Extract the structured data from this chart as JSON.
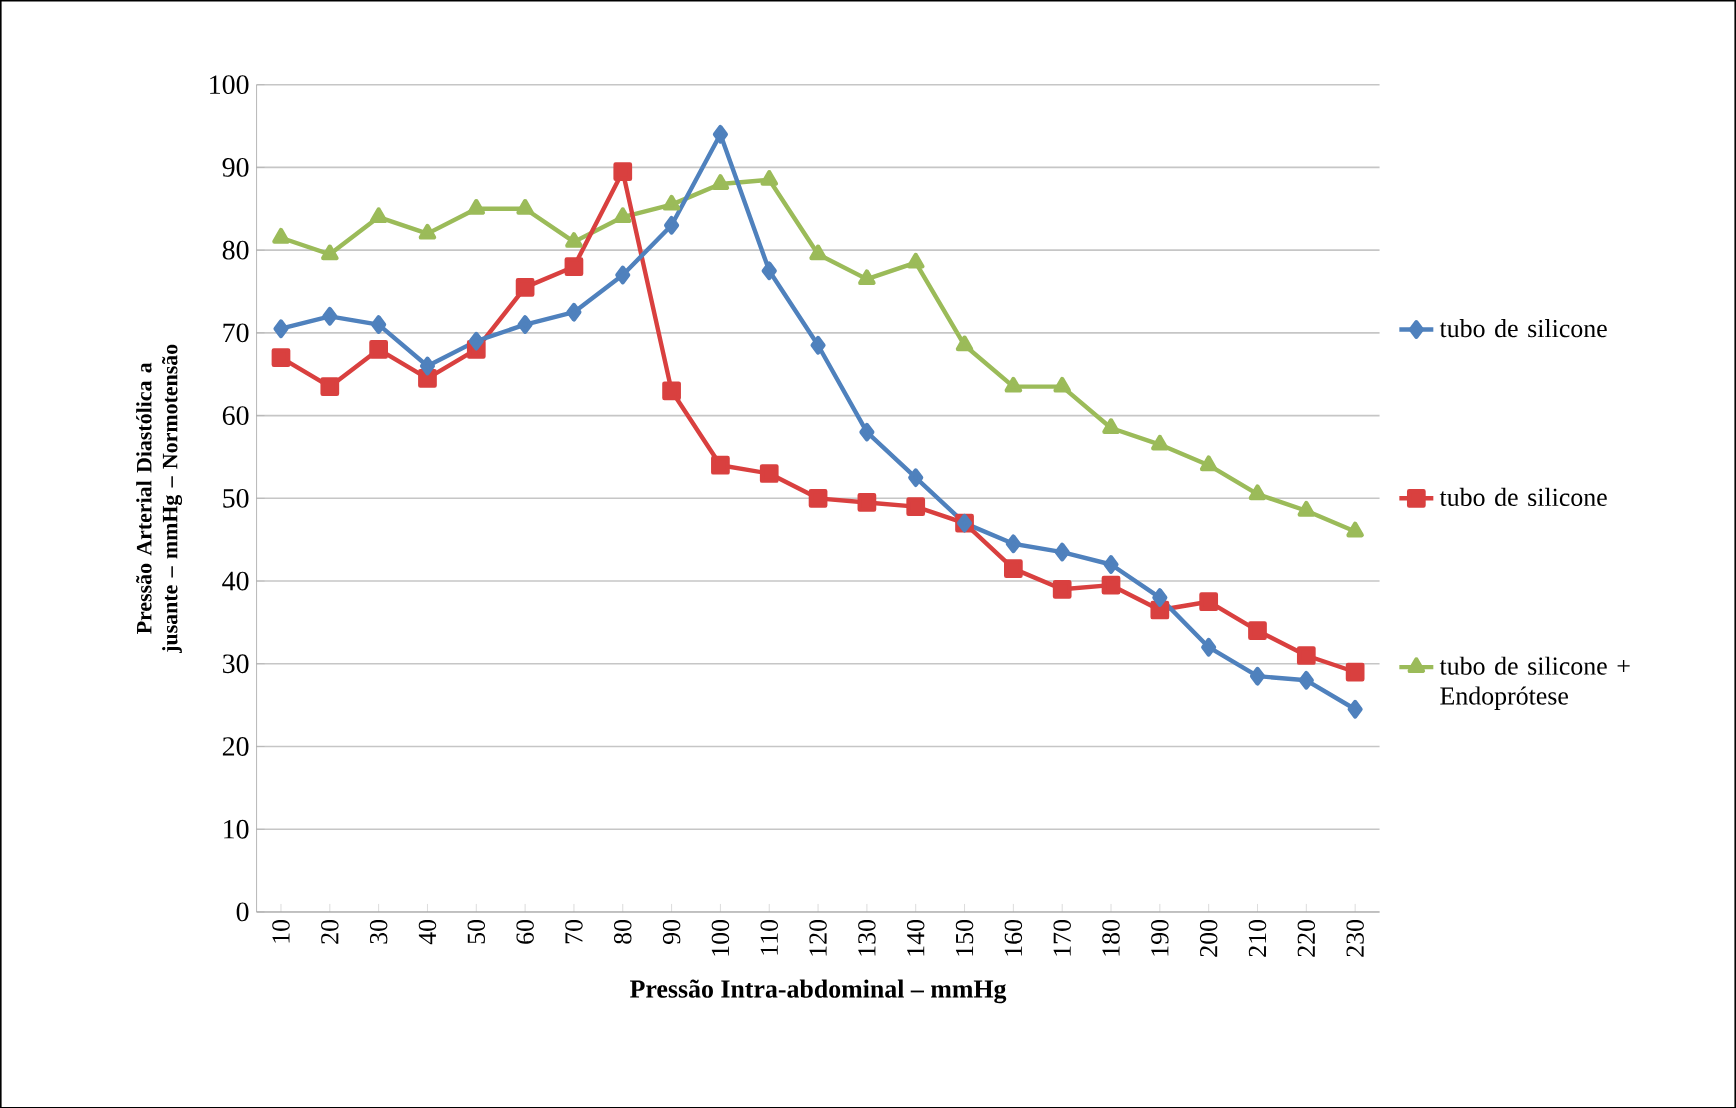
{
  "chart_data": {
    "type": "line",
    "xlabel": "Pressão Intra-abdominal – mmHg",
    "ylabel": "Pressão Arterial Diastólica a jusante – mmHg – Normotensão",
    "categories": [
      "10",
      "20",
      "30",
      "40",
      "50",
      "60",
      "70",
      "80",
      "90",
      "100",
      "110",
      "120",
      "130",
      "140",
      "150",
      "160",
      "170",
      "180",
      "190",
      "200",
      "210",
      "220",
      "230"
    ],
    "ylim": [
      0,
      100
    ],
    "yticks": [
      0,
      10,
      20,
      30,
      40,
      50,
      60,
      70,
      80,
      90,
      100
    ],
    "grid": "y",
    "legend": "right",
    "series": [
      {
        "name": "tubo de silicone",
        "color": "#4f81bd",
        "marker": "diamond",
        "values": [
          70.5,
          72,
          71,
          66,
          69,
          71,
          72.5,
          77,
          83,
          94,
          77.5,
          68.5,
          58,
          52.5,
          47,
          44.5,
          43.5,
          42,
          38,
          32,
          28.5,
          28,
          24.5
        ]
      },
      {
        "name": "tubo de silicone",
        "color": "#d9403f",
        "marker": "square",
        "values": [
          67,
          63.5,
          68,
          64.5,
          68,
          75.5,
          78,
          89.5,
          63,
          54,
          53,
          50,
          49.5,
          49,
          47,
          41.5,
          39,
          39.5,
          36.5,
          37.5,
          34,
          31,
          29
        ]
      },
      {
        "name": "tubo de silicone + Endoprótese",
        "color": "#9bbb59",
        "marker": "triangle",
        "values": [
          81.5,
          79.5,
          84,
          82,
          85,
          85,
          81,
          84,
          85.5,
          88,
          88.5,
          79.5,
          76.5,
          78.5,
          68.5,
          63.5,
          63.5,
          58.5,
          56.5,
          54,
          50.5,
          48.5,
          46
        ]
      }
    ]
  }
}
